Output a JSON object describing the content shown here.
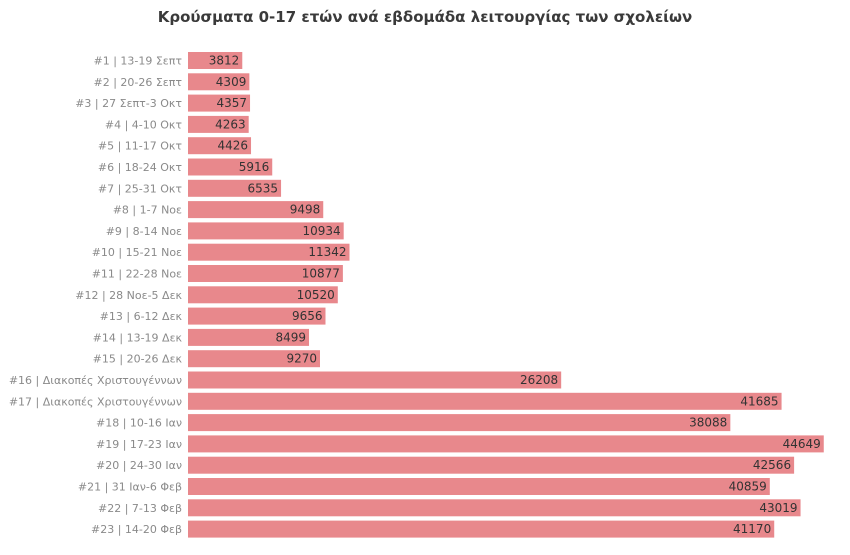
{
  "chart_data": {
    "type": "bar",
    "orientation": "horizontal",
    "title": "Κρούσματα 0-17 ετών ανά εβδομάδα λειτουργίας των σχολείων",
    "categories": [
      "#1 | 13-19 Σεπτ",
      "#2 | 20-26 Σεπτ",
      "#3 | 27 Σεπτ-3 Οκτ",
      "#4 | 4-10 Οκτ",
      "#5 | 11-17 Οκτ",
      "#6 | 18-24 Οκτ",
      "#7 | 25-31 Οκτ",
      "#8 | 1-7 Νοε",
      "#9 | 8-14 Νοε",
      "#10 | 15-21 Νοε",
      "#11 | 22-28 Νοε",
      "#12 | 28 Νοε-5 Δεκ",
      "#13 | 6-12 Δεκ",
      "#14 | 13-19 Δεκ",
      "#15 | 20-26 Δεκ",
      "#16 | Διακοπές Χριστουγέννων",
      "#17 | Διακοπές Χριστουγέννων",
      "#18 | 10-16 Ιαν",
      "#19 | 17-23 Ιαν",
      "#20 | 24-30 Ιαν",
      "#21 | 31 Ιαν-6 Φεβ",
      "#22 | 7-13 Φεβ",
      "#23 | 14-20 Φεβ"
    ],
    "values": [
      3812,
      4309,
      4357,
      4263,
      4426,
      5916,
      6535,
      9498,
      10934,
      11342,
      10877,
      10520,
      9656,
      8499,
      9270,
      26208,
      41685,
      38088,
      44649,
      42566,
      40859,
      43019,
      41170
    ],
    "xlim": [
      0,
      46000
    ],
    "bar_color": "#e8888c",
    "grid": false,
    "legend": "none",
    "data_labels": "inside-end"
  }
}
